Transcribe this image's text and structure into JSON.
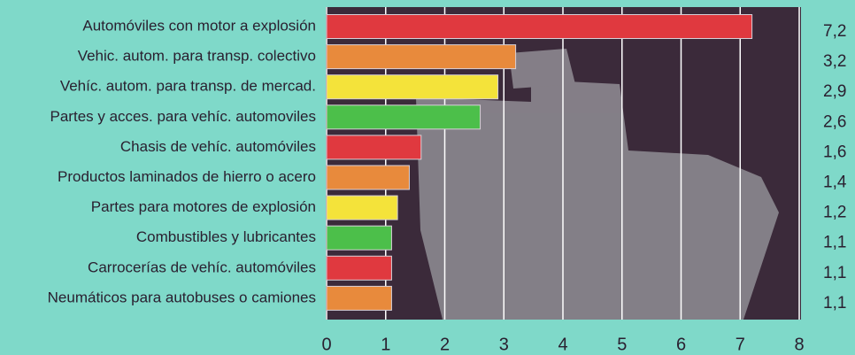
{
  "chart_data": {
    "type": "barh",
    "categories": [
      "Automóviles con motor a explosión",
      "Vehic. autom. para transp. colectivo",
      "Vehíc. autom. para transp. de mercad.",
      "Partes y acces. para vehíc. automoviles",
      "Chasis de vehíc. automóviles",
      "Productos laminados de hierro o acero",
      "Partes para motores de explosión",
      "Combustibles y lubricantes",
      "Carrocerías de vehíc. automóviles",
      "Neumáticos para autobuses o camiones"
    ],
    "values": [
      7.2,
      3.2,
      2.9,
      2.6,
      1.6,
      1.4,
      1.2,
      1.1,
      1.1,
      1.1
    ],
    "value_labels": [
      "7,2",
      "3,2",
      "2,9",
      "2,6",
      "1,6",
      "1,4",
      "1,2",
      "1,1",
      "1,1",
      "1,1"
    ],
    "colors": [
      "#e0393f",
      "#e88a3c",
      "#f4e33a",
      "#4cbf4a",
      "#e0393f",
      "#e88a3c",
      "#f4e33a",
      "#4cbf4a",
      "#e0393f",
      "#e88a3c"
    ],
    "xlim": [
      0,
      8
    ],
    "xticks": [
      0,
      1,
      2,
      3,
      4,
      5,
      6,
      7,
      8
    ],
    "grid": true
  }
}
